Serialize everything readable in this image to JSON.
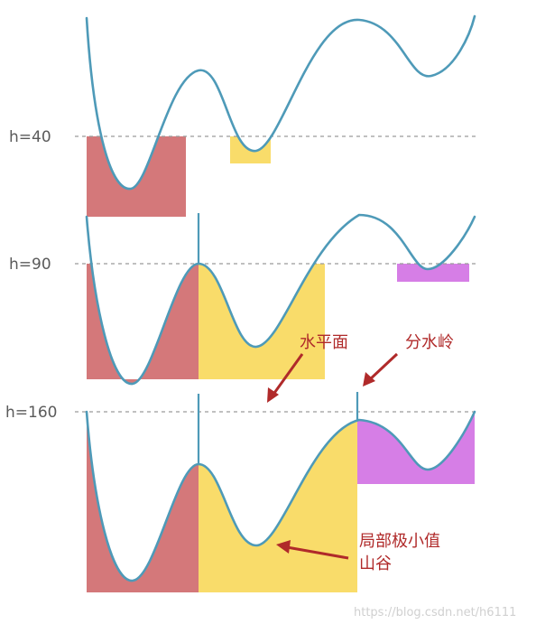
{
  "panels": [
    {
      "level_label": "h=40"
    },
    {
      "level_label": "h=90"
    },
    {
      "level_label": "h=160"
    }
  ],
  "annotations": {
    "water_surface": "水平面",
    "watershed": "分水岭",
    "local_minimum_line1": "局部极小值",
    "local_minimum_line2": "山谷"
  },
  "watermark": "https://blog.csdn.net/h6111",
  "colors": {
    "curve": "#4e9ab8",
    "basin_red": "#d4787a",
    "basin_yellow": "#f9dc6a",
    "basin_purple": "#d67ee6",
    "annotation_red": "#b02a2a"
  }
}
